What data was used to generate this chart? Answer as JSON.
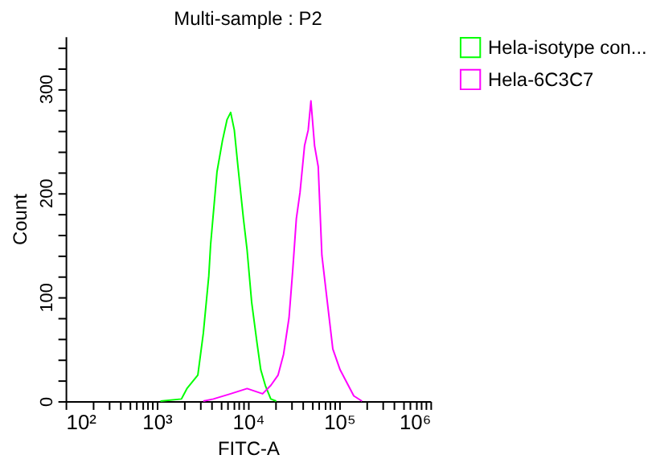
{
  "chart_data": {
    "type": "line",
    "title": "Multi-sample : P2",
    "xlabel": "FITC-A",
    "ylabel": "Count",
    "log": "x",
    "xlim": [
      100,
      1000000
    ],
    "xticks": [
      {
        "value": 100,
        "label": "10²"
      },
      {
        "value": 200,
        "label": null
      },
      {
        "value": 300,
        "label": null
      },
      {
        "value": 400,
        "label": null
      },
      {
        "value": 500,
        "label": null
      },
      {
        "value": 600,
        "label": null
      },
      {
        "value": 700,
        "label": null
      },
      {
        "value": 800,
        "label": null
      },
      {
        "value": 900,
        "label": null
      },
      {
        "value": 1000,
        "label": "10³"
      },
      {
        "value": 2000,
        "label": null
      },
      {
        "value": 3000,
        "label": null
      },
      {
        "value": 4000,
        "label": null
      },
      {
        "value": 5000,
        "label": null
      },
      {
        "value": 6000,
        "label": null
      },
      {
        "value": 7000,
        "label": null
      },
      {
        "value": 8000,
        "label": null
      },
      {
        "value": 9000,
        "label": null
      },
      {
        "value": 10000,
        "label": "10⁴"
      },
      {
        "value": 20000,
        "label": null
      },
      {
        "value": 30000,
        "label": null
      },
      {
        "value": 40000,
        "label": null
      },
      {
        "value": 50000,
        "label": null
      },
      {
        "value": 60000,
        "label": null
      },
      {
        "value": 70000,
        "label": null
      },
      {
        "value": 80000,
        "label": null
      },
      {
        "value": 90000,
        "label": null
      },
      {
        "value": 100000,
        "label": "10⁵"
      },
      {
        "value": 200000,
        "label": null
      },
      {
        "value": 300000,
        "label": null
      },
      {
        "value": 400000,
        "label": null
      },
      {
        "value": 500000,
        "label": null
      },
      {
        "value": 600000,
        "label": null
      },
      {
        "value": 700000,
        "label": null
      },
      {
        "value": 800000,
        "label": null
      },
      {
        "value": 900000,
        "label": null
      },
      {
        "value": 1000000,
        "label": "10⁶"
      }
    ],
    "ylim": [
      0,
      350
    ],
    "yticks": [
      0,
      {
        "value": 20,
        "label": null
      },
      {
        "value": 40,
        "label": null
      },
      {
        "value": 60,
        "label": null
      },
      {
        "value": 80,
        "label": null
      },
      100,
      {
        "value": 120,
        "label": null
      },
      {
        "value": 140,
        "label": null
      },
      {
        "value": 160,
        "label": null
      },
      {
        "value": 180,
        "label": null
      },
      200,
      {
        "value": 220,
        "label": null
      },
      {
        "value": 240,
        "label": null
      },
      {
        "value": 260,
        "label": null
      },
      {
        "value": 280,
        "label": null
      },
      300,
      {
        "value": 320,
        "label": null
      },
      {
        "value": 340,
        "label": null
      }
    ],
    "grid": false,
    "legend": "top right",
    "marker": "none",
    "line_style": "solid",
    "series": [
      {
        "name": "Hela-isotype con...",
        "color": "#00ff00",
        "x": [
          1096,
          1862,
          2138,
          2818,
          3236,
          3715,
          3890,
          4571,
          5248,
          5888,
          6457,
          7079,
          7762,
          8913,
          9772,
          10965,
          12589,
          13804,
          15488,
          17783,
          20417
        ],
        "values": [
          0,
          2,
          12,
          25,
          65,
          120,
          150,
          220,
          250,
          270,
          277,
          260,
          225,
          175,
          145,
          95,
          55,
          30,
          15,
          2,
          0
        ]
      },
      {
        "name": "Hela-6C3C7",
        "color": "#ff00ff",
        "x": [
          3236,
          4169,
          6457,
          9772,
          14454,
          17783,
          21380,
          24547,
          28184,
          30903,
          33884,
          37154,
          41687,
          45709,
          48978,
          53703,
          58884,
          64565,
          74131,
          85114,
          102329,
          125893,
          144544,
          177828
        ],
        "values": [
          0,
          2,
          7,
          12,
          7,
          15,
          25,
          45,
          80,
          125,
          175,
          200,
          245,
          260,
          288,
          245,
          225,
          140,
          95,
          50,
          30,
          15,
          5,
          0
        ]
      }
    ]
  }
}
